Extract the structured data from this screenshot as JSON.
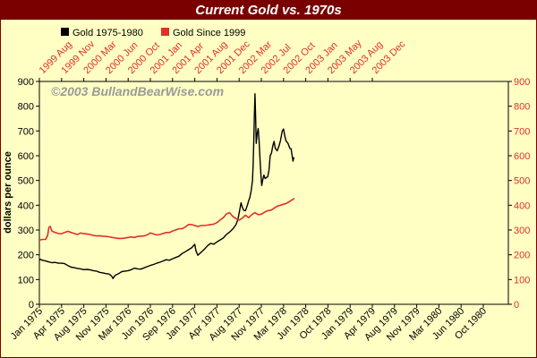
{
  "chart_data": {
    "type": "line",
    "title": "Current Gold vs. 1970s",
    "watermark": "©2003 BullandBearWise.com",
    "ylabel": "dollars per ounce",
    "ylim": [
      0,
      900
    ],
    "y_ticks": [
      0,
      100,
      200,
      300,
      400,
      500,
      600,
      700,
      800,
      900
    ],
    "grid": false,
    "legend_position": "top-left",
    "bottom_axis_ticks": [
      "Jan 1975",
      "Apr 1975",
      "Aug 1975",
      "Nov 1975",
      "Mar 1976",
      "Jun 1976",
      "Sep 1976",
      "Jan 1977",
      "Apr 1977",
      "Aug 1977",
      "Nov 1977",
      "Mar 1978",
      "Jun 1978",
      "Oct 1978",
      "Jan 1979",
      "Apr 1979",
      "Aug 1979",
      "Nov 1979",
      "Mar 1980",
      "Jun 1980",
      "Oct 1980"
    ],
    "top_axis_ticks": [
      "1999 Aug",
      "1999 Nov",
      "2000 Mar",
      "2000 Jun",
      "2000 Oct",
      "2001 Jan",
      "2001 Apr",
      "2001 Aug",
      "2001 Dec",
      "2002 Mar",
      "2002 Jul",
      "2002 Oct",
      "2003 Jan",
      "2003 May",
      "2003 Aug",
      "2003 Dec"
    ],
    "series": [
      {
        "name": "Gold 1975-1980",
        "color": "#000000",
        "axis": "bottom",
        "x_range": [
          "Jan 1975",
          "Dec 1980"
        ],
        "points": [
          [
            0,
            177
          ],
          [
            0.1,
            182
          ],
          [
            0.5,
            178
          ],
          [
            1,
            175
          ],
          [
            1.5,
            171
          ],
          [
            2,
            168
          ],
          [
            2.5,
            169
          ],
          [
            3,
            166
          ],
          [
            3.5,
            166
          ],
          [
            4,
            164
          ],
          [
            4.5,
            156
          ],
          [
            5,
            150
          ],
          [
            5.5,
            148
          ],
          [
            6,
            145
          ],
          [
            6.5,
            143
          ],
          [
            7,
            140
          ],
          [
            7.5,
            141
          ],
          [
            8,
            139
          ],
          [
            8.5,
            136
          ],
          [
            9,
            134
          ],
          [
            9.5,
            129
          ],
          [
            10,
            127
          ],
          [
            10.5,
            124
          ],
          [
            11,
            122
          ],
          [
            11.3,
            116
          ],
          [
            11.5,
            110
          ],
          [
            11.6,
            104
          ],
          [
            11.8,
            112
          ],
          [
            12,
            118
          ],
          [
            12.5,
            124
          ],
          [
            13,
            132
          ],
          [
            13.5,
            134
          ],
          [
            14,
            136
          ],
          [
            14.5,
            140
          ],
          [
            15,
            146
          ],
          [
            15.5,
            143
          ],
          [
            16,
            142
          ],
          [
            16.5,
            147
          ],
          [
            17,
            152
          ],
          [
            17.5,
            157
          ],
          [
            18,
            161
          ],
          [
            18.5,
            166
          ],
          [
            19,
            170
          ],
          [
            19.5,
            175
          ],
          [
            20,
            180
          ],
          [
            20.5,
            178
          ],
          [
            21,
            184
          ],
          [
            21.5,
            189
          ],
          [
            22,
            194
          ],
          [
            22.5,
            205
          ],
          [
            23,
            212
          ],
          [
            23.5,
            220
          ],
          [
            24,
            228
          ],
          [
            24.5,
            242
          ],
          [
            24.7,
            215
          ],
          [
            25,
            198
          ],
          [
            25.5,
            210
          ],
          [
            26,
            222
          ],
          [
            26.5,
            236
          ],
          [
            27,
            246
          ],
          [
            27.5,
            243
          ],
          [
            28,
            252
          ],
          [
            28.5,
            260
          ],
          [
            29,
            268
          ],
          [
            29.5,
            282
          ],
          [
            30,
            292
          ],
          [
            30.5,
            304
          ],
          [
            31,
            322
          ],
          [
            31.3,
            342
          ],
          [
            31.6,
            382
          ],
          [
            31.8,
            410
          ],
          [
            32,
            392
          ],
          [
            32.2,
            380
          ],
          [
            32.5,
            378
          ],
          [
            32.8,
            400
          ],
          [
            33,
            418
          ],
          [
            33.2,
            432
          ],
          [
            33.4,
            460
          ],
          [
            33.6,
            500
          ],
          [
            33.7,
            560
          ],
          [
            33.8,
            650
          ],
          [
            33.9,
            760
          ],
          [
            34,
            850
          ],
          [
            34.1,
            760
          ],
          [
            34.2,
            650
          ],
          [
            34.35,
            690
          ],
          [
            34.5,
            710
          ],
          [
            34.65,
            660
          ],
          [
            34.8,
            580
          ],
          [
            34.95,
            520
          ],
          [
            35.05,
            480
          ],
          [
            35.2,
            500
          ],
          [
            35.4,
            522
          ],
          [
            35.6,
            508
          ],
          [
            35.8,
            512
          ],
          [
            36,
            515
          ],
          [
            36.2,
            540
          ],
          [
            36.4,
            600
          ],
          [
            36.6,
            610
          ],
          [
            36.8,
            640
          ],
          [
            37,
            658
          ],
          [
            37.2,
            630
          ],
          [
            37.5,
            620
          ],
          [
            37.8,
            640
          ],
          [
            38,
            660
          ],
          [
            38.3,
            700
          ],
          [
            38.5,
            708
          ],
          [
            38.7,
            680
          ],
          [
            38.9,
            660
          ],
          [
            39.2,
            650
          ],
          [
            39.5,
            630
          ],
          [
            39.7,
            628
          ],
          [
            39.85,
            600
          ],
          [
            40,
            578
          ],
          [
            40.1,
            592
          ],
          [
            40.2,
            588
          ]
        ]
      },
      {
        "name": "Gold Since 1999",
        "color": "#e0302a",
        "axis": "top",
        "x_range": [
          "1999 Jul",
          "2003 Aug"
        ],
        "points": [
          [
            0,
            258
          ],
          [
            0.1,
            260
          ],
          [
            0.5,
            262
          ],
          [
            1,
            262
          ],
          [
            1.3,
            278
          ],
          [
            1.5,
            310
          ],
          [
            1.7,
            315
          ],
          [
            1.9,
            300
          ],
          [
            2,
            295
          ],
          [
            2.5,
            290
          ],
          [
            3,
            286
          ],
          [
            3.5,
            285
          ],
          [
            4,
            290
          ],
          [
            4.5,
            295
          ],
          [
            5,
            290
          ],
          [
            5.5,
            286
          ],
          [
            6,
            282
          ],
          [
            6.5,
            288
          ],
          [
            7,
            285
          ],
          [
            7.5,
            284
          ],
          [
            8,
            282
          ],
          [
            8.5,
            278
          ],
          [
            9,
            276
          ],
          [
            9.5,
            277
          ],
          [
            10,
            275
          ],
          [
            10.5,
            274
          ],
          [
            11,
            273
          ],
          [
            11.5,
            270
          ],
          [
            12,
            268
          ],
          [
            12.5,
            266
          ],
          [
            13,
            266
          ],
          [
            13.5,
            268
          ],
          [
            14,
            270
          ],
          [
            14.5,
            272
          ],
          [
            15,
            270
          ],
          [
            15.5,
            274
          ],
          [
            16,
            275
          ],
          [
            16.5,
            276
          ],
          [
            17,
            280
          ],
          [
            17.5,
            288
          ],
          [
            18,
            284
          ],
          [
            18.5,
            280
          ],
          [
            19,
            282
          ],
          [
            19.5,
            286
          ],
          [
            20,
            290
          ],
          [
            20.5,
            290
          ],
          [
            21,
            296
          ],
          [
            21.5,
            300
          ],
          [
            22,
            305
          ],
          [
            22.5,
            305
          ],
          [
            23,
            312
          ],
          [
            23.5,
            322
          ],
          [
            24,
            322
          ],
          [
            24.5,
            318
          ],
          [
            25,
            314
          ],
          [
            25.5,
            318
          ],
          [
            26,
            318
          ],
          [
            26.5,
            320
          ],
          [
            27,
            322
          ],
          [
            27.5,
            324
          ],
          [
            28,
            330
          ],
          [
            28.5,
            340
          ],
          [
            29,
            350
          ],
          [
            29.5,
            365
          ],
          [
            30,
            370
          ],
          [
            30.5,
            355
          ],
          [
            31,
            346
          ],
          [
            31.5,
            340
          ],
          [
            32,
            348
          ],
          [
            32.5,
            360
          ],
          [
            33,
            350
          ],
          [
            33.5,
            362
          ],
          [
            34,
            370
          ],
          [
            34.5,
            362
          ],
          [
            35,
            364
          ],
          [
            35.5,
            372
          ],
          [
            36,
            378
          ],
          [
            36.5,
            380
          ],
          [
            37,
            388
          ],
          [
            37.5,
            396
          ],
          [
            38,
            400
          ],
          [
            38.5,
            404
          ],
          [
            39,
            408
          ],
          [
            39.5,
            416
          ],
          [
            40,
            424
          ],
          [
            40.2,
            428
          ]
        ]
      }
    ]
  }
}
